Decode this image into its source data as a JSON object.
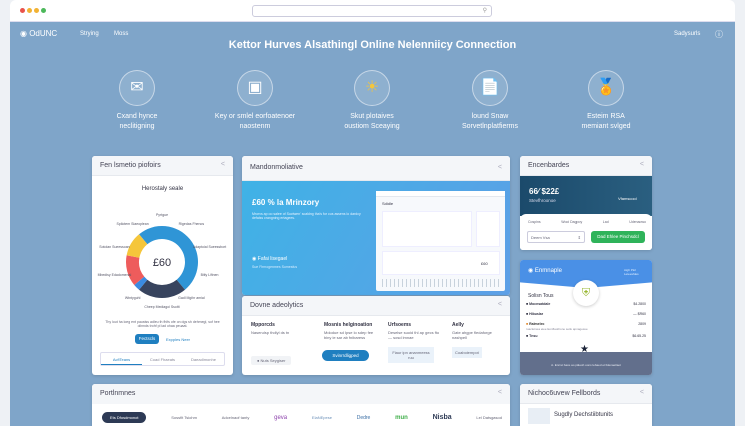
{
  "browser": {
    "dots": [
      "#e9534b",
      "#f2b233",
      "#f2b233",
      "#4cb85a"
    ]
  },
  "nav": {
    "logo": "OdUNC",
    "items": [
      "Strying",
      "Moss"
    ],
    "right": "Sadysurls"
  },
  "hero": {
    "title": "Kettor Hurves Alsathingl Online Nelenniicy Connection",
    "features": [
      {
        "icon": "envelope-icon",
        "l1": "Cxand hynce",
        "l2": "neclitigning"
      },
      {
        "icon": "screen-icon",
        "l1": "Key or smlel eorfoatenoer",
        "l2": "naostenm"
      },
      {
        "icon": "sun-icon",
        "l1": "Skut plotaives",
        "l2": "oustiom Sceaying"
      },
      {
        "icon": "documents-icon",
        "l1": "lound Snaw",
        "l2": "Sorvetlnplatfierms"
      },
      {
        "icon": "award-icon",
        "l1": "Esteim RSA",
        "l2": "memiant svlged"
      }
    ]
  },
  "left_card": {
    "title": "Fen lsmetio piofoirs",
    "chart_title": "Herostaly seale",
    "center": "£60",
    "labels": [
      "Pyrtgue",
      "Rigedas Fhenos",
      "Adaptoial Sueessbort",
      "Bitly Lifinen",
      "Gadl Mgihr amial",
      "Cheep Mediagoi Ssoitt",
      "Wtntyguhl",
      "Mbedisy Edadomenal",
      "Sotolan Sueessoan",
      "Spilotem Siaeoplean"
    ],
    "text": "Thy lout ha loeg ent paustss adleu th fhifs ofe on dgs sh dehmegl, sof hee olinnds trohf pl iad ohaa peuaat.",
    "btn_primary": "Fectscls",
    "btn_link": "Expples Neer",
    "tabs": [
      "AcfiTeans",
      "Coad Fhaeats",
      "Daeadimonhe"
    ]
  },
  "chart_data": {
    "type": "pie",
    "title": "Herostaly seale",
    "center_label": "£60",
    "values": [
      50,
      22,
      3,
      14,
      11
    ],
    "colors": [
      "#2f95d6",
      "#38445e",
      "#3b8be0",
      "#ee5c5c",
      "#f5c63b"
    ]
  },
  "mid_card": {
    "title": "Mandonmoliative",
    "headline": "£60 % la Mrinzory",
    "desc": "Mrorvs ap oo salee of Suctwen' scaldng tha's for cus assens lo dardcy defalss crangning ertagees.",
    "status": "Fafai lisegael",
    "status_sub": "Sue Flrmogenmes Sumesfus",
    "mock_title": "Sdidle",
    "mock_value": "£60"
  },
  "analytics": {
    "title": "Dovne adeolytics",
    "cols": [
      {
        "h": "Mpporcds",
        "t": "Naserulsp thdlyl ds tn",
        "extra": "Nuts Seygiser"
      },
      {
        "h": "Mosnis helginoation",
        "t": "Mdodue sd Ipse lo sdep fee biny ie sar ab fnibaress",
        "btn": "Svinrrdligped"
      },
      {
        "h": "Urfsoems",
        "t": "Deselse suoid thl ap gecs fto — sosd lmnae",
        "btn": "Fiaur ipn ananmeess ruu"
      },
      {
        "h": "Aelly",
        "t": "Gate ahgpe fledaforge nashpell",
        "btn": "Coaboiempot"
      }
    ]
  },
  "enc_card": {
    "title": "Encenbardes",
    "price": "66⁄ $22£",
    "sub": "Stevfhroonoe",
    "side": "Vfamscool",
    "tabs": [
      "Cospins",
      "Wooi Dagpoy",
      "Lad",
      "Udenaowo"
    ],
    "select": "Deem Vsa",
    "btn": "Dad Ehlee Pinchsdcl"
  },
  "ex_card": {
    "title": "Enmnaple",
    "corner": "Aigh Plol Leteesfdes",
    "list_title": "Solisn Tous",
    "rows": [
      {
        "n": "Mocnsatdale",
        "v": "$4.2800"
      },
      {
        "n": "Hibuslar",
        "v": "— $R60"
      },
      {
        "n": "Ralmelec",
        "v": "2809"
      },
      {
        "n": "Tnsu",
        "v": "$6.65.25"
      }
    ],
    "row_note": "ruacletnea eiee Eonflaothone seilu apnagesue",
    "footer": "A. Enrret bace ao pl£eoh uons lebaed et lldenaellaot"
  },
  "partners": {
    "title": "Portlnmnes",
    "logos": [
      "Ets Dfosdmonot",
      "Sossfit Tsiohm",
      "Adcelnaof tanty",
      "geva",
      "ElaNEpese",
      "Dedre",
      "mun",
      "Nisba",
      "Lel Datsgasod"
    ]
  },
  "feed": {
    "title": "Nichoc6uvew Fellbords",
    "item": "Sugdly Dechstiibtunits"
  }
}
